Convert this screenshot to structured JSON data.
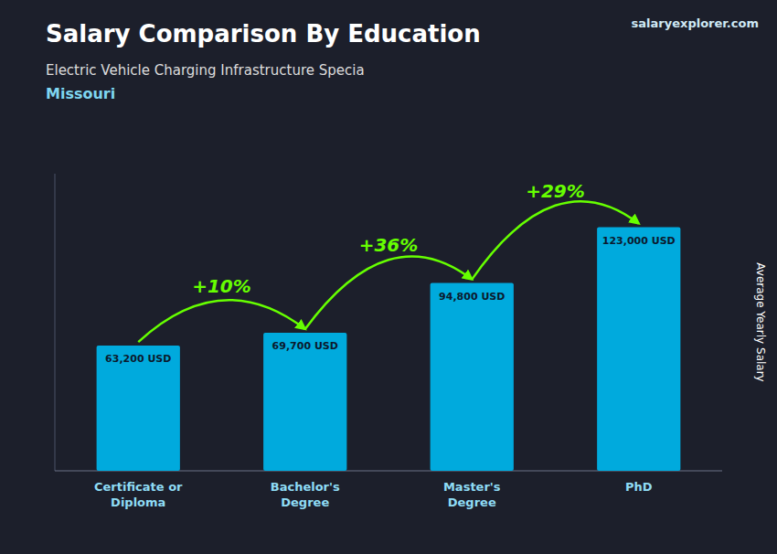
{
  "chart_data": {
    "type": "bar",
    "title": "Salary Comparison By Education",
    "subtitle": [
      "Electric Vehicle Charging Infrastructure Specia",
      "Missouri"
    ],
    "source": "salaryexplorer.com",
    "ylabel": "Average Yearly Salary",
    "categories": [
      "Certificate or\nDiploma",
      "Bachelor's\nDegree",
      "Master's\nDegree",
      "PhD"
    ],
    "values": [
      63200,
      69700,
      94800,
      123000
    ],
    "value_labels": [
      "63,200 USD",
      "69,700 USD",
      "94,800 USD",
      "123,000 USD"
    ],
    "data_labels": true,
    "color": "#00aadd",
    "ylim": [
      0,
      150000
    ],
    "tick_labels": "x",
    "grid": false,
    "annotations": [
      {
        "from": 0,
        "to": 1,
        "text": "+10%",
        "color": "#66ff00"
      },
      {
        "from": 1,
        "to": 2,
        "text": "+36%",
        "color": "#66ff00"
      },
      {
        "from": 2,
        "to": 3,
        "text": "+29%",
        "color": "#66ff00"
      }
    ]
  }
}
